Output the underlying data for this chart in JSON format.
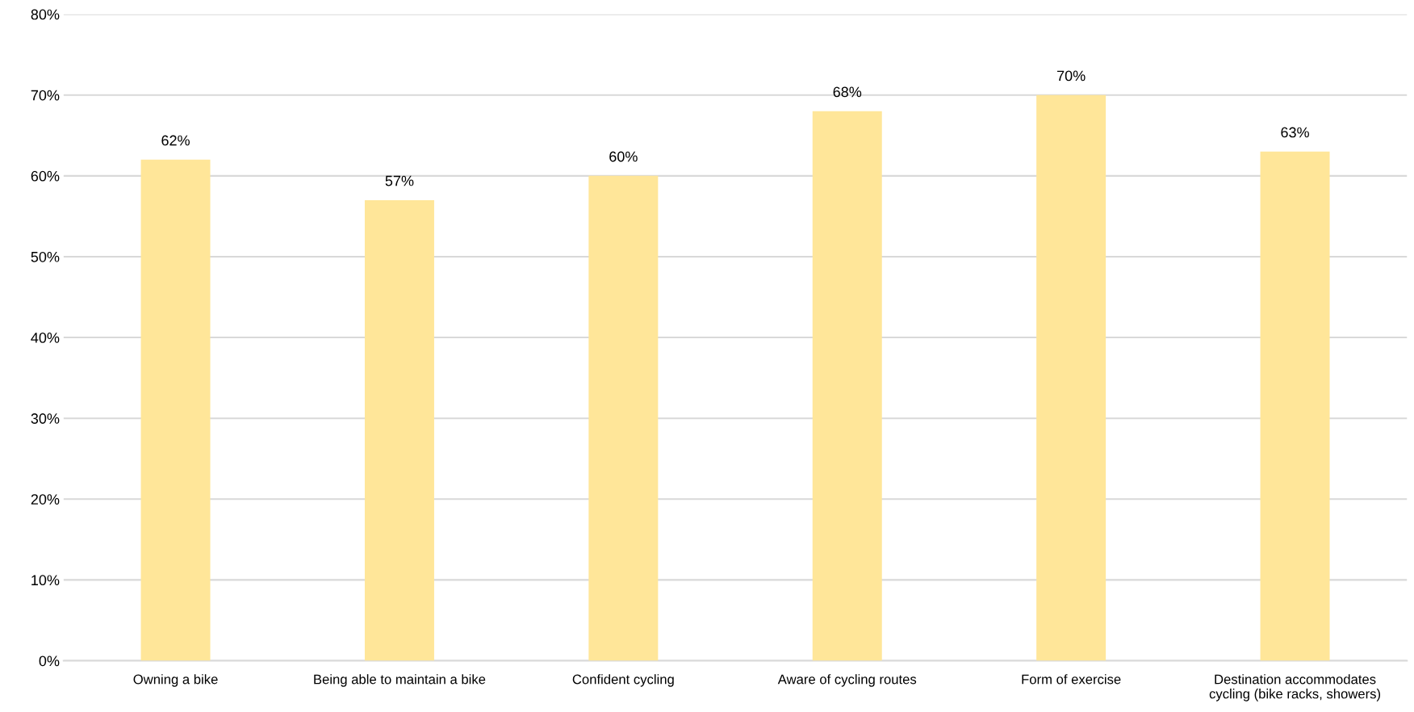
{
  "chart_data": {
    "type": "bar",
    "categories": [
      "Owning a bike",
      "Being able to maintain a bike",
      "Confident cycling",
      "Aware of cycling routes",
      "Form of exercise",
      "Destination accommodates\ncycling (bike racks, showers)"
    ],
    "values": [
      62,
      57,
      60,
      68,
      70,
      63
    ],
    "value_labels": [
      "62%",
      "57%",
      "60%",
      "68%",
      "70%",
      "63%"
    ],
    "color": "#ffe699",
    "ylim": [
      0,
      80
    ],
    "yticks": [
      {
        "value": 0,
        "label": "0%"
      },
      {
        "value": 10,
        "label": "10%"
      },
      {
        "value": 20,
        "label": "20%"
      },
      {
        "value": 30,
        "label": "30%"
      },
      {
        "value": 40,
        "label": "40%"
      },
      {
        "value": 50,
        "label": "50%"
      },
      {
        "value": 60,
        "label": "60%"
      },
      {
        "value": 70,
        "label": "70%"
      },
      {
        "value": 80,
        "label": "80%"
      }
    ],
    "grid": "y",
    "legend": false
  }
}
